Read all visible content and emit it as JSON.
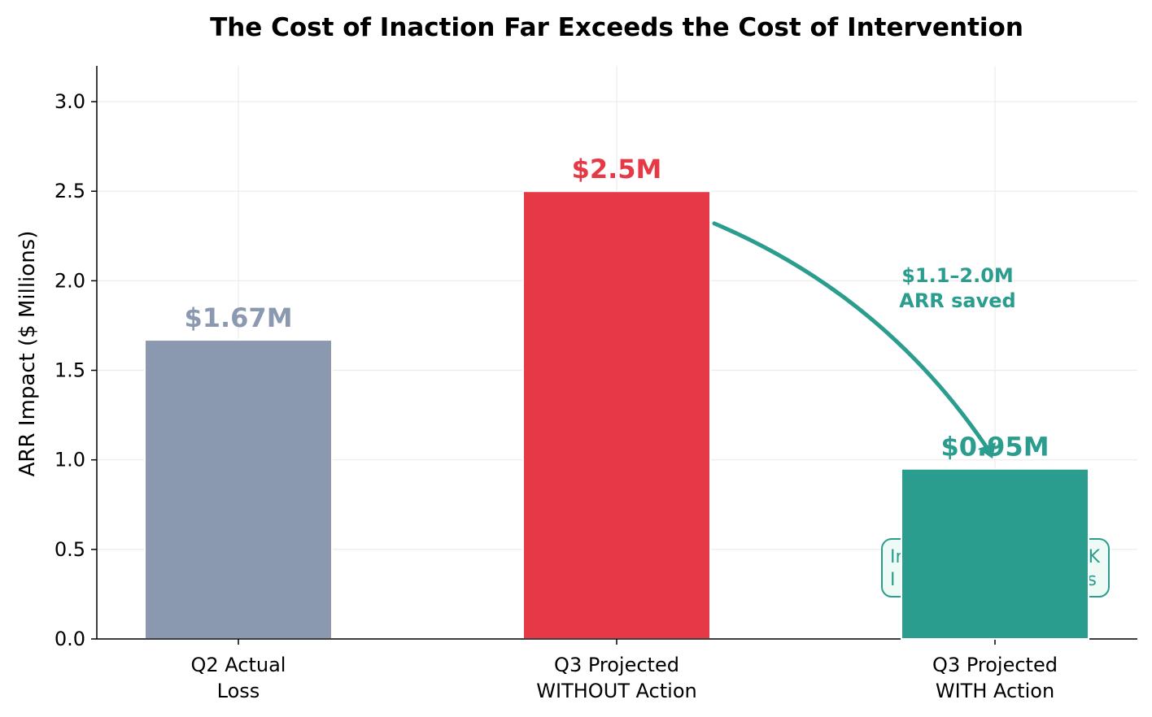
{
  "chart_data": {
    "type": "bar",
    "title": "The Cost of Inaction Far Exceeds the Cost of Intervention",
    "xlabel": "",
    "ylabel": "ARR Impact ($ Millions)",
    "ylim": [
      0,
      3.2
    ],
    "yticks": [
      0.0,
      0.5,
      1.0,
      1.5,
      2.0,
      2.5,
      3.0
    ],
    "ytick_labels": [
      "0.0",
      "0.5",
      "1.0",
      "1.5",
      "2.0",
      "2.5",
      "3.0"
    ],
    "grid": true,
    "categories": [
      [
        "Q2 Actual",
        "Loss"
      ],
      [
        "Q3 Projected",
        "WITHOUT Action"
      ],
      [
        "Q3 Projected",
        "WITH Action"
      ]
    ],
    "values": [
      1.67,
      2.5,
      0.95
    ],
    "value_labels": [
      "$1.67M",
      "$2.5M",
      "$0.95M"
    ],
    "colors": [
      "#8b99b0",
      "#e63946",
      "#2a9d8f"
    ],
    "annotations": [
      {
        "text_lines": [
          "$1.1–2.0M",
          "ARR saved"
        ],
        "color": "#2a9d8f",
        "arrow_from_value": 2.32,
        "arrow_to_value": 0.98
      }
    ],
    "overlay_box": {
      "text_lines": [
        "In",
        "K",
        "I",
        "s"
      ],
      "color": "#2a9d8f"
    }
  }
}
